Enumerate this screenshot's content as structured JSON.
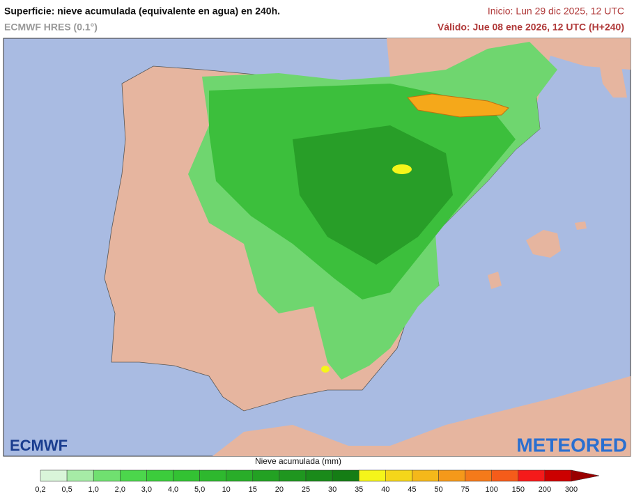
{
  "header": {
    "title": "Superficie: nieve acumulada (equivalente en agua) en 240h.",
    "model": "ECMWF HRES (0.1°)",
    "init": "Inicio: Lun 29 dic 2025, 12 UTC",
    "valid": "Válido: Jue 08 ene 2026, 12 UTC (H+240)"
  },
  "logos": {
    "left": "ECMWF",
    "right": "METEORED"
  },
  "legend": {
    "title": "Nieve acumulada (mm)",
    "labels": [
      "0,2",
      "0,5",
      "1,0",
      "2,0",
      "3,0",
      "4,0",
      "5,0",
      "10",
      "15",
      "20",
      "25",
      "30",
      "35",
      "40",
      "45",
      "50",
      "75",
      "100",
      "150",
      "200",
      "300"
    ],
    "colors": [
      "#d9f5d9",
      "#a6eba6",
      "#70e070",
      "#4cd64c",
      "#3ccc3c",
      "#33c233",
      "#2eb82e",
      "#29ad29",
      "#23a123",
      "#1f961f",
      "#1a8a1a",
      "#157d15",
      "#f5f51a",
      "#f5d61a",
      "#f5b81a",
      "#f5991a",
      "#f57a1a",
      "#f55c1a",
      "#f51a1a",
      "#cc0000"
    ],
    "arrow_color": "#990000"
  }
}
